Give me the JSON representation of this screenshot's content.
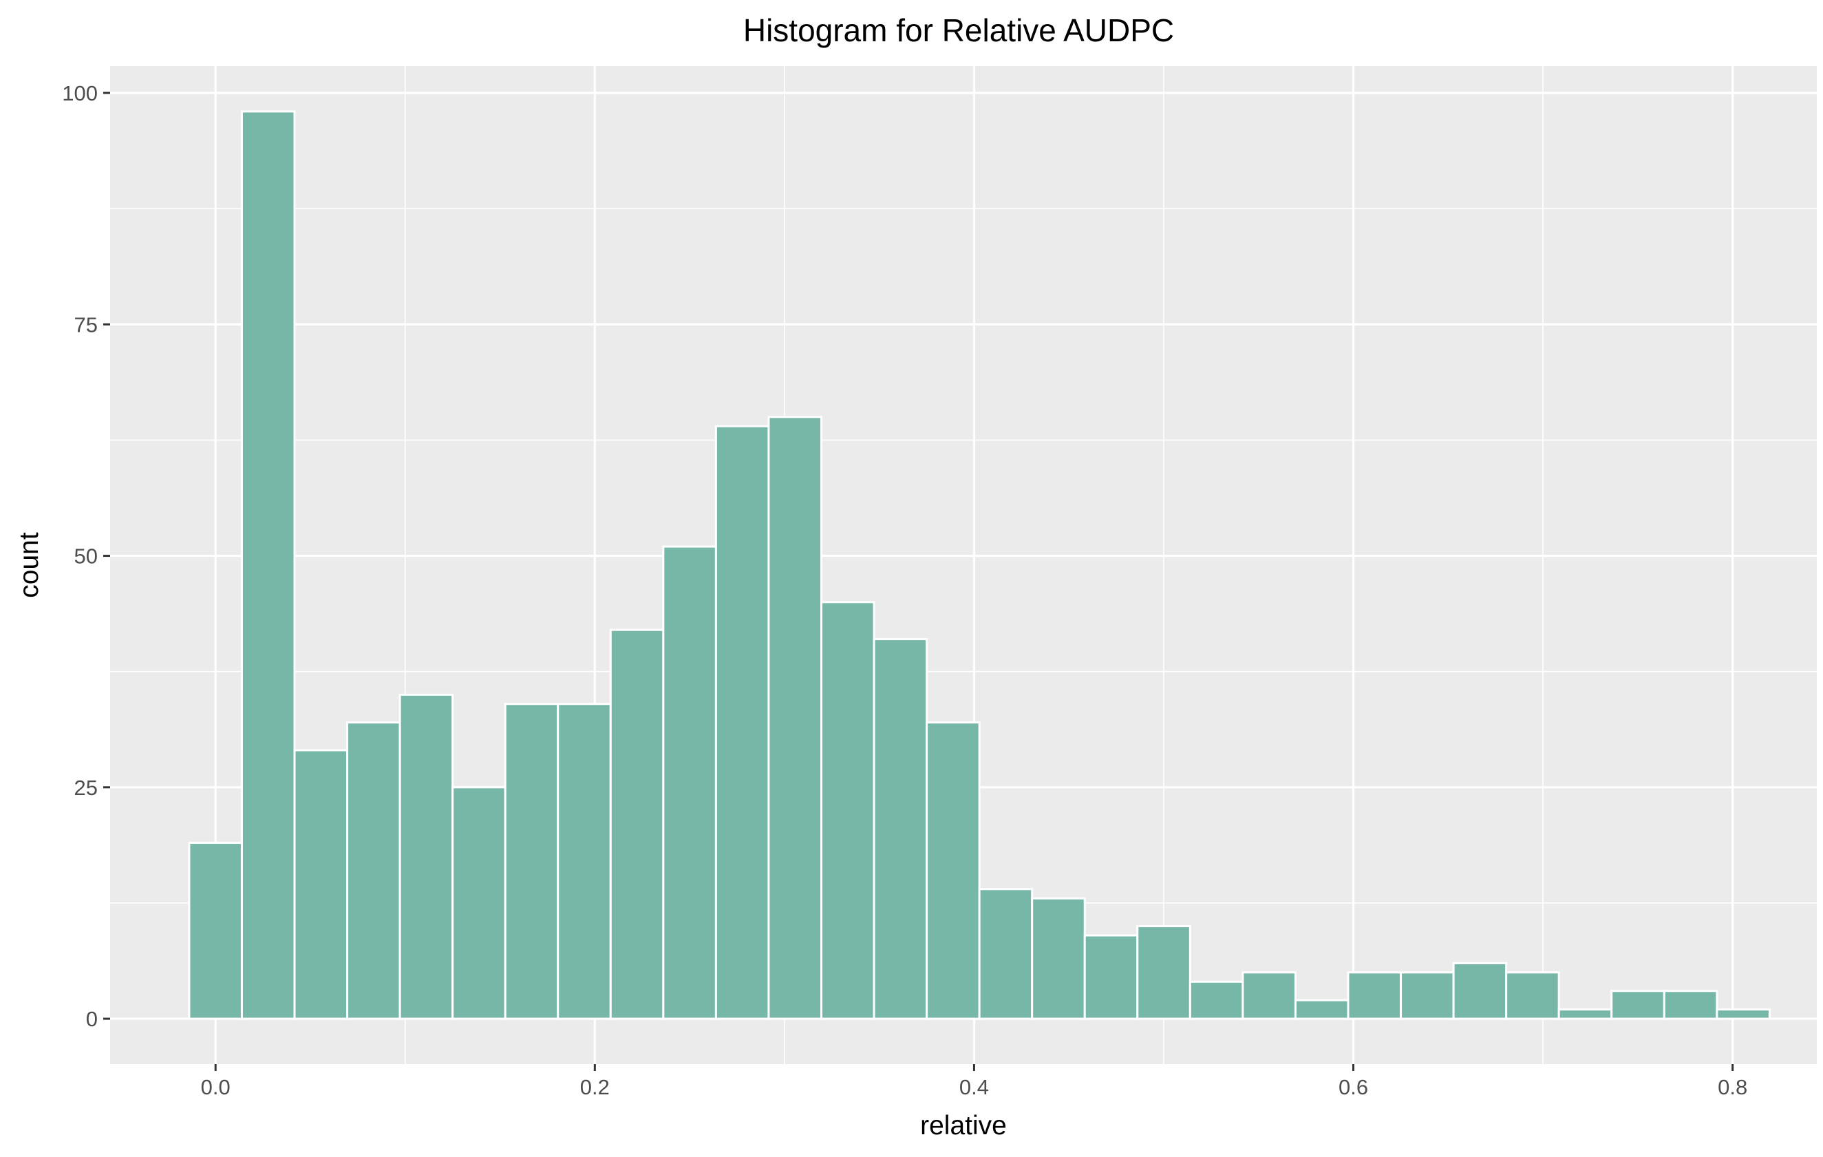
{
  "chart_data": {
    "type": "bar",
    "title": "Histogram for Relative AUDPC",
    "xlabel": "relative",
    "ylabel": "count",
    "bin_width": 0.02778,
    "x_bin_start": -0.0139,
    "counts": [
      19,
      98,
      29,
      32,
      35,
      25,
      34,
      34,
      42,
      51,
      64,
      65,
      45,
      41,
      32,
      14,
      13,
      9,
      10,
      4,
      5,
      2,
      5,
      5,
      6,
      5,
      1,
      3,
      3,
      1
    ],
    "xlim": [
      -0.0556,
      0.8444
    ],
    "ylim": [
      -4.9,
      102.9
    ],
    "x_ticks": [
      "0.0",
      "0.2",
      "0.4",
      "0.6",
      "0.8"
    ],
    "x_tick_values": [
      0.0,
      0.2,
      0.4,
      0.6,
      0.8
    ],
    "y_ticks": [
      "0",
      "25",
      "50",
      "75",
      "100"
    ],
    "y_tick_values": [
      0,
      25,
      50,
      75,
      100
    ],
    "grid": true,
    "legend": "none"
  },
  "colors": {
    "panel_background": "#EBEBEB",
    "grid_line": "#FFFFFF",
    "bar_fill": "#76B7A8",
    "bar_outline": "#FFFFFF",
    "tick_mark": "#333333",
    "tick_label": "#4D4D4D"
  }
}
